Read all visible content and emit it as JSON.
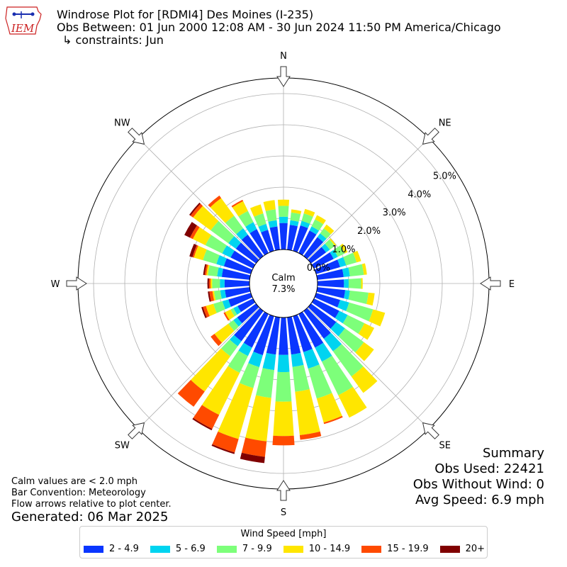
{
  "header": {
    "title": "Windrose Plot for [RDMI4] Des Moines (I-235)",
    "subtitle": "Obs Between: 01 Jun 2000 12:08 AM - 30 Jun 2024 11:50 PM America/Chicago",
    "constraints": "↳ constraints: Jun",
    "logo_text": "IEM"
  },
  "notes": {
    "calm_def": "Calm values are < 2.0 mph",
    "convention": "Bar Convention: Meteorology",
    "arrows": "Flow arrows relative to plot center.",
    "generated": "Generated: 06 Mar 2025"
  },
  "summary": {
    "title": "Summary",
    "obs_used": "Obs Used: 22421",
    "obs_without_wind": "Obs Without Wind: 0",
    "avg_speed": "Avg Speed: 6.9 mph"
  },
  "legend": {
    "title": "Wind Speed [mph]"
  },
  "chart_data": {
    "type": "windrose",
    "calm_label": "Calm",
    "calm_value": "7.3%",
    "directions": [
      "N",
      "NE",
      "E",
      "SE",
      "S",
      "SW",
      "W",
      "NW"
    ],
    "radial_ticks": [
      "0.0%",
      "1.0%",
      "2.0%",
      "3.0%",
      "4.0%",
      "5.0%"
    ],
    "rmax": 5.5,
    "bin_count": 36,
    "bin_width_deg": 10,
    "speed_bins": [
      {
        "label": "2 - 4.9",
        "color": "#0a36ff"
      },
      {
        "label": "5 - 6.9",
        "color": "#00d4f0"
      },
      {
        "label": "7 - 9.9",
        "color": "#7dff7a"
      },
      {
        "label": "10 - 14.9",
        "color": "#ffe600"
      },
      {
        "label": "15 - 19.9",
        "color": "#ff4a00"
      },
      {
        "label": "20+",
        "color": "#800000"
      }
    ],
    "bins": [
      {
        "dir": 0,
        "values": [
          0.85,
          0.2,
          0.35,
          0.2,
          0.0,
          0.0
        ]
      },
      {
        "dir": 10,
        "values": [
          0.8,
          0.15,
          0.25,
          0.1,
          0.0,
          0.0
        ]
      },
      {
        "dir": 20,
        "values": [
          0.85,
          0.15,
          0.25,
          0.15,
          0.0,
          0.0
        ]
      },
      {
        "dir": 30,
        "values": [
          0.8,
          0.15,
          0.25,
          0.15,
          0.0,
          0.0
        ]
      },
      {
        "dir": 40,
        "values": [
          0.75,
          0.15,
          0.2,
          0.15,
          0.0,
          0.0
        ]
      },
      {
        "dir": 50,
        "values": [
          0.6,
          0.15,
          0.2,
          0.05,
          0.0,
          0.0
        ]
      },
      {
        "dir": 60,
        "values": [
          0.7,
          0.15,
          0.25,
          0.1,
          0.0,
          0.0
        ]
      },
      {
        "dir": 70,
        "values": [
          0.8,
          0.2,
          0.35,
          0.15,
          0.0,
          0.0
        ]
      },
      {
        "dir": 80,
        "values": [
          0.85,
          0.2,
          0.45,
          0.1,
          0.0,
          0.0
        ]
      },
      {
        "dir": 90,
        "values": [
          0.85,
          0.15,
          0.4,
          0.05,
          0.0,
          0.0
        ]
      },
      {
        "dir": 100,
        "values": [
          0.9,
          0.15,
          0.6,
          0.2,
          0.0,
          0.0
        ]
      },
      {
        "dir": 110,
        "values": [
          0.8,
          0.3,
          0.8,
          0.4,
          0.0,
          0.0
        ]
      },
      {
        "dir": 120,
        "values": [
          0.9,
          0.3,
          0.6,
          0.35,
          0.0,
          0.0
        ]
      },
      {
        "dir": 130,
        "values": [
          1.0,
          0.35,
          0.75,
          0.4,
          0.0,
          0.0
        ]
      },
      {
        "dir": 140,
        "values": [
          1.1,
          0.5,
          1.0,
          0.65,
          0.0,
          0.0
        ]
      },
      {
        "dir": 150,
        "values": [
          1.2,
          0.5,
          1.2,
          0.8,
          0.0,
          0.0
        ]
      },
      {
        "dir": 160,
        "values": [
          1.2,
          0.55,
          1.0,
          0.8,
          0.05,
          0.0
        ]
      },
      {
        "dir": 170,
        "values": [
          1.2,
          0.4,
          0.8,
          1.4,
          0.15,
          0.0
        ]
      },
      {
        "dir": 180,
        "values": [
          1.2,
          0.55,
          0.95,
          1.1,
          0.3,
          0.0
        ]
      },
      {
        "dir": 190,
        "values": [
          1.2,
          0.5,
          0.9,
          1.4,
          0.5,
          0.2
        ]
      },
      {
        "dir": 200,
        "values": [
          1.3,
          0.4,
          0.7,
          1.7,
          0.45,
          0.05
        ]
      },
      {
        "dir": 210,
        "values": [
          1.2,
          0.3,
          0.6,
          1.5,
          0.5,
          0.05
        ]
      },
      {
        "dir": 220,
        "values": [
          1.2,
          0.2,
          0.4,
          1.4,
          0.6,
          0.0
        ]
      },
      {
        "dir": 230,
        "values": [
          0.75,
          0.15,
          0.2,
          0.55,
          0.15,
          0.0
        ]
      },
      {
        "dir": 240,
        "values": [
          0.55,
          0.15,
          0.1,
          0.2,
          0.05,
          0.0
        ]
      },
      {
        "dir": 250,
        "values": [
          0.75,
          0.2,
          0.3,
          0.25,
          0.1,
          0.05
        ]
      },
      {
        "dir": 260,
        "values": [
          0.8,
          0.15,
          0.2,
          0.05,
          0.1,
          0.05
        ]
      },
      {
        "dir": 270,
        "values": [
          0.8,
          0.15,
          0.25,
          0.05,
          0.05,
          0.05
        ]
      },
      {
        "dir": 280,
        "values": [
          0.9,
          0.15,
          0.3,
          0.05,
          0.05,
          0.05
        ]
      },
      {
        "dir": 290,
        "values": [
          0.9,
          0.25,
          0.45,
          0.3,
          0.05,
          0.1
        ]
      },
      {
        "dir": 300,
        "values": [
          0.8,
          0.3,
          0.6,
          0.45,
          0.1,
          0.2
        ]
      },
      {
        "dir": 310,
        "values": [
          0.8,
          0.3,
          0.7,
          0.7,
          0.1,
          0.05
        ]
      },
      {
        "dir": 320,
        "values": [
          0.85,
          0.25,
          0.5,
          0.7,
          0.1,
          0.0
        ]
      },
      {
        "dir": 330,
        "values": [
          0.85,
          0.25,
          0.4,
          0.35,
          0.05,
          0.0
        ]
      },
      {
        "dir": 340,
        "values": [
          0.7,
          0.2,
          0.35,
          0.3,
          0.0,
          0.0
        ]
      },
      {
        "dir": 350,
        "values": [
          0.75,
          0.2,
          0.35,
          0.3,
          0.0,
          0.0
        ]
      }
    ]
  }
}
